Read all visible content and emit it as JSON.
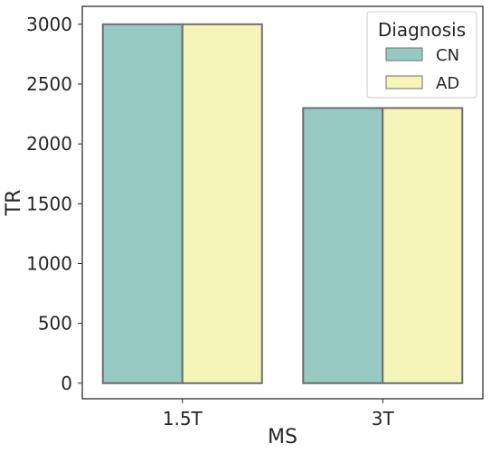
{
  "chart_data": {
    "type": "bar",
    "xlabel": "MS",
    "ylabel": "TR",
    "categories": [
      "1.5T",
      "3T"
    ],
    "series": [
      {
        "name": "CN",
        "values": [
          3000,
          2300
        ]
      },
      {
        "name": "AD",
        "values": [
          3000,
          2300
        ]
      }
    ],
    "ylim": [
      -130,
      3150
    ],
    "yticks": [
      0,
      500,
      1000,
      1500,
      2000,
      2500,
      3000
    ],
    "grid": false,
    "legend": {
      "title": "Diagnosis",
      "placement": "top-right",
      "entries": [
        "CN",
        "AD"
      ]
    },
    "colors": {
      "CN": "#96c9c1",
      "AD": "#f5f5b9",
      "bar_edge": "#6e6e6e",
      "axis": "#262626"
    }
  }
}
